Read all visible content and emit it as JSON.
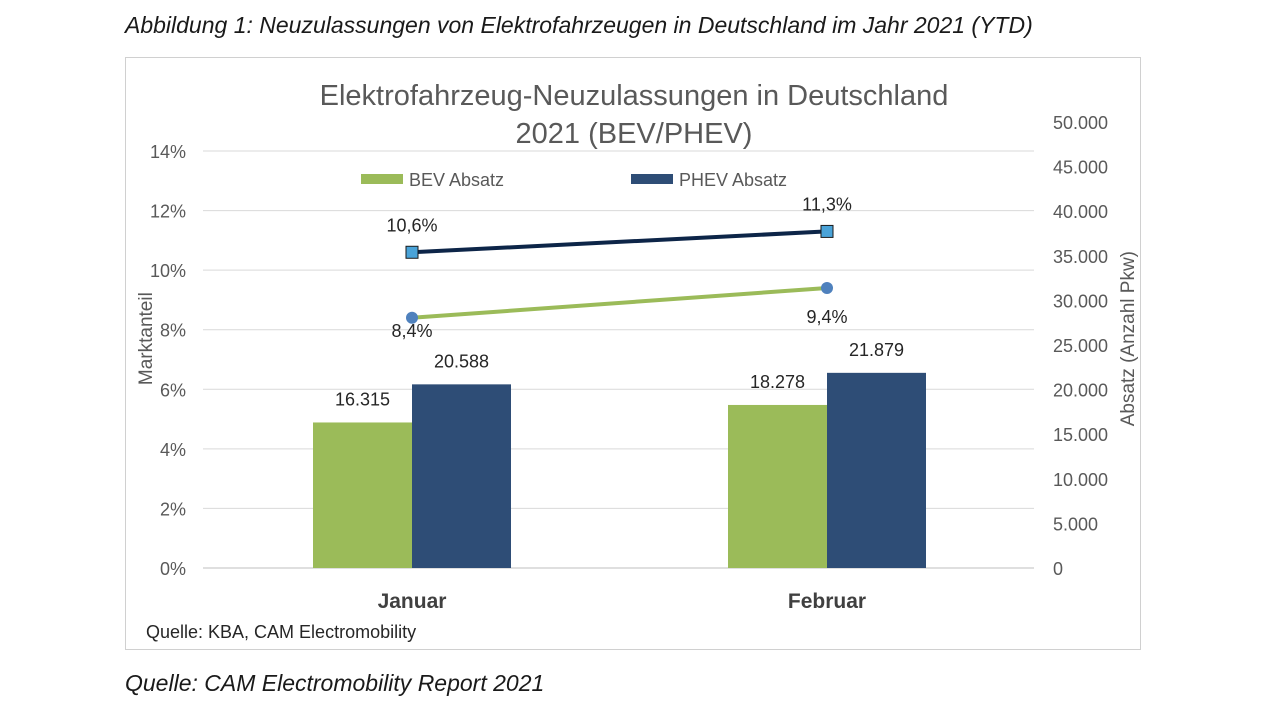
{
  "figure_caption": "Abbildung 1: Neuzulassungen von Elektrofahrzeugen in Deutschland im Jahr 2021 (YTD)",
  "bottom_caption": "Quelle: CAM Electromobility Report 2021",
  "colors": {
    "bev_bar": "#9bbb59",
    "phev_bar": "#2e4d76",
    "bev_line": "#9bbb59",
    "phev_line": "#0d2548",
    "bev_marker": "#4f81bd",
    "phev_marker": "#4aa3d8",
    "grid": "#d9d9d9",
    "text": "#595959"
  },
  "chart_data": {
    "type": "bar",
    "title_lines": [
      "Elektrofahrzeug-Neuzulassungen in Deutschland",
      "2021 (BEV/PHEV)"
    ],
    "categories": [
      "Januar",
      "Februar"
    ],
    "ylabel_left": "Marktanteil",
    "ylabel_right": "Absatz (Anzahl Pkw)",
    "ylim_left": [
      0,
      14
    ],
    "ylim_right": [
      0,
      50000
    ],
    "left_ticks": [
      "0%",
      "2%",
      "4%",
      "6%",
      "8%",
      "10%",
      "12%",
      "14%"
    ],
    "right_ticks": [
      "0",
      "5.000",
      "10.000",
      "15.000",
      "20.000",
      "25.000",
      "30.000",
      "35.000",
      "40.000",
      "45.000",
      "50.000"
    ],
    "bar_series": [
      {
        "name": "BEV Absatz",
        "values": [
          16315,
          18278
        ],
        "labels": [
          "16.315",
          "18.278"
        ]
      },
      {
        "name": "PHEV Absatz",
        "values": [
          20588,
          21879
        ],
        "labels": [
          "20.588",
          "21.879"
        ]
      }
    ],
    "line_series": [
      {
        "series": "BEV",
        "values": [
          8.4,
          9.4
        ],
        "labels": [
          "8,4%",
          "9,4%"
        ]
      },
      {
        "series": "PHEV",
        "values": [
          10.6,
          11.3
        ],
        "labels": [
          "10,6%",
          "11,3%"
        ]
      }
    ],
    "legend_position": "top",
    "grid": true,
    "source_note": "Quelle: KBA, CAM Electromobility"
  }
}
